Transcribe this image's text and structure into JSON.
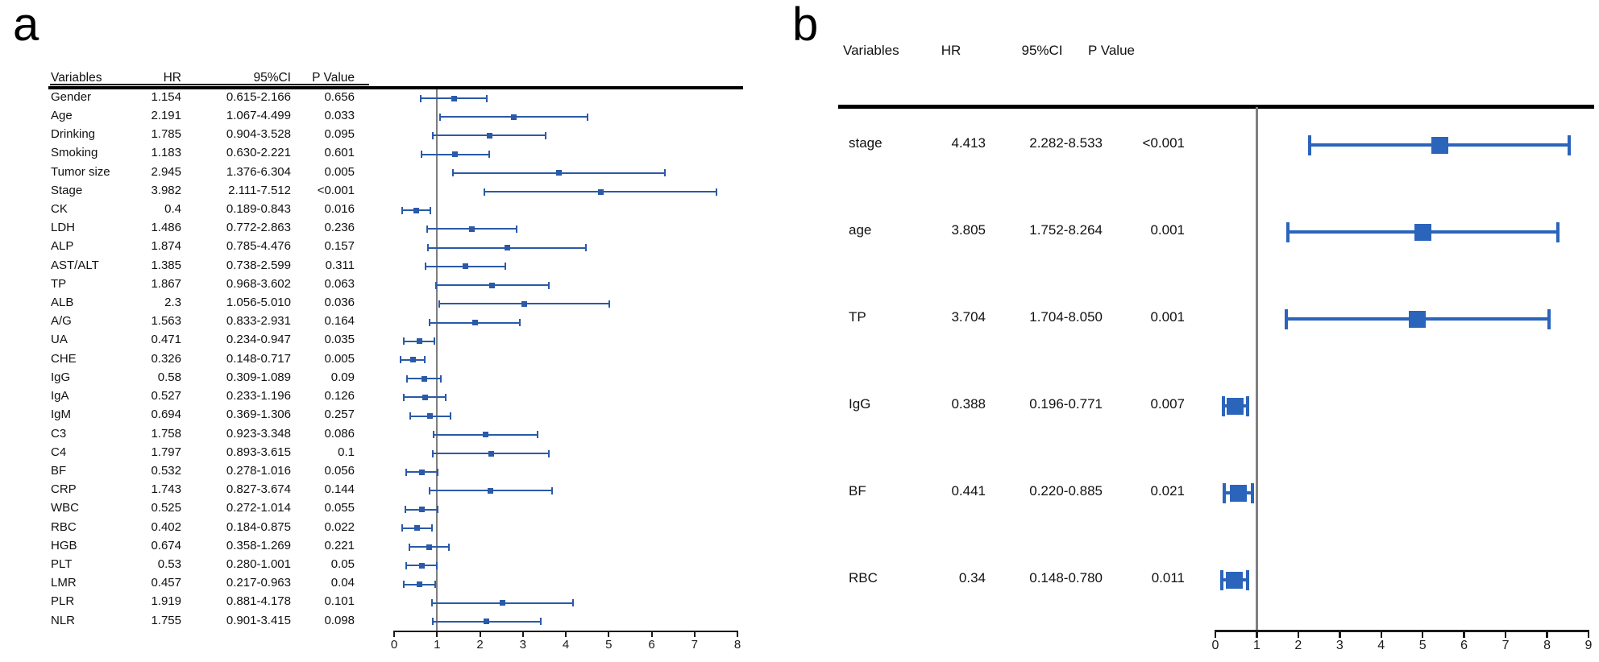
{
  "figure": {
    "panel_a_label": "a",
    "panel_b_label": "b",
    "background": "#ffffff",
    "text_color": "#111111",
    "reference_line_color": "#7f7f7f"
  },
  "chart_data": [
    {
      "type": "forest",
      "panel": "a",
      "accent_color": "#2a5aa8",
      "columns": [
        "Variables",
        "HR",
        "95%CI",
        "P Value"
      ],
      "x_axis": {
        "min": 0,
        "max": 8,
        "ticks": [
          0,
          1,
          2,
          3,
          4,
          5,
          6,
          7,
          8
        ]
      },
      "reference_line_x": 1,
      "marker_position": "ci_midpoint",
      "grid": false,
      "rows": [
        {
          "label": "Gender",
          "hr": "1.154",
          "ci": "0.615-2.166",
          "ci_low": 0.615,
          "ci_high": 2.166,
          "p": "0.656"
        },
        {
          "label": "Age",
          "hr": "2.191",
          "ci": "1.067-4.499",
          "ci_low": 1.067,
          "ci_high": 4.499,
          "p": "0.033"
        },
        {
          "label": "Drinking",
          "hr": "1.785",
          "ci": "0.904-3.528",
          "ci_low": 0.904,
          "ci_high": 3.528,
          "p": "0.095"
        },
        {
          "label": "Smoking",
          "hr": "1.183",
          "ci": "0.630-2.221",
          "ci_low": 0.63,
          "ci_high": 2.221,
          "p": "0.601"
        },
        {
          "label": "Tumor size",
          "hr": "2.945",
          "ci": "1.376-6.304",
          "ci_low": 1.376,
          "ci_high": 6.304,
          "p": "0.005"
        },
        {
          "label": "Stage",
          "hr": "3.982",
          "ci": "2.111-7.512",
          "ci_low": 2.111,
          "ci_high": 7.512,
          "p": "<0.001"
        },
        {
          "label": "CK",
          "hr": "0.4",
          "ci": "0.189-0.843",
          "ci_low": 0.189,
          "ci_high": 0.843,
          "p": "0.016"
        },
        {
          "label": "LDH",
          "hr": "1.486",
          "ci": "0.772-2.863",
          "ci_low": 0.772,
          "ci_high": 2.863,
          "p": "0.236"
        },
        {
          "label": "ALP",
          "hr": "1.874",
          "ci": "0.785-4.476",
          "ci_low": 0.785,
          "ci_high": 4.476,
          "p": "0.157"
        },
        {
          "label": "AST/ALT",
          "hr": "1.385",
          "ci": "0.738-2.599",
          "ci_low": 0.738,
          "ci_high": 2.599,
          "p": "0.311"
        },
        {
          "label": "TP",
          "hr": "1.867",
          "ci": "0.968-3.602",
          "ci_low": 0.968,
          "ci_high": 3.602,
          "p": "0.063"
        },
        {
          "label": "ALB",
          "hr": "2.3",
          "ci": "1.056-5.010",
          "ci_low": 1.056,
          "ci_high": 5.01,
          "p": "0.036"
        },
        {
          "label": "A/G",
          "hr": "1.563",
          "ci": "0.833-2.931",
          "ci_low": 0.833,
          "ci_high": 2.931,
          "p": "0.164"
        },
        {
          "label": "UA",
          "hr": "0.471",
          "ci": "0.234-0.947",
          "ci_low": 0.234,
          "ci_high": 0.947,
          "p": "0.035"
        },
        {
          "label": "CHE",
          "hr": "0.326",
          "ci": "0.148-0.717",
          "ci_low": 0.148,
          "ci_high": 0.717,
          "p": "0.005"
        },
        {
          "label": "IgG",
          "hr": "0.58",
          "ci": "0.309-1.089",
          "ci_low": 0.309,
          "ci_high": 1.089,
          "p": "0.09"
        },
        {
          "label": "IgA",
          "hr": "0.527",
          "ci": "0.233-1.196",
          "ci_low": 0.233,
          "ci_high": 1.196,
          "p": "0.126"
        },
        {
          "label": "IgM",
          "hr": "0.694",
          "ci": "0.369-1.306",
          "ci_low": 0.369,
          "ci_high": 1.306,
          "p": "0.257"
        },
        {
          "label": "C3",
          "hr": "1.758",
          "ci": "0.923-3.348",
          "ci_low": 0.923,
          "ci_high": 3.348,
          "p": "0.086"
        },
        {
          "label": "C4",
          "hr": "1.797",
          "ci": "0.893-3.615",
          "ci_low": 0.893,
          "ci_high": 3.615,
          "p": "0.1"
        },
        {
          "label": "BF",
          "hr": "0.532",
          "ci": "0.278-1.016",
          "ci_low": 0.278,
          "ci_high": 1.016,
          "p": "0.056"
        },
        {
          "label": "CRP",
          "hr": "1.743",
          "ci": "0.827-3.674",
          "ci_low": 0.827,
          "ci_high": 3.674,
          "p": "0.144"
        },
        {
          "label": "WBC",
          "hr": "0.525",
          "ci": "0.272-1.014",
          "ci_low": 0.272,
          "ci_high": 1.014,
          "p": "0.055"
        },
        {
          "label": "RBC",
          "hr": "0.402",
          "ci": "0.184-0.875",
          "ci_low": 0.184,
          "ci_high": 0.875,
          "p": "0.022"
        },
        {
          "label": "HGB",
          "hr": "0.674",
          "ci": "0.358-1.269",
          "ci_low": 0.358,
          "ci_high": 1.269,
          "p": "0.221"
        },
        {
          "label": "PLT",
          "hr": "0.53",
          "ci": "0.280-1.001",
          "ci_low": 0.28,
          "ci_high": 1.001,
          "p": "0.05"
        },
        {
          "label": "LMR",
          "hr": "0.457",
          "ci": "0.217-0.963",
          "ci_low": 0.217,
          "ci_high": 0.963,
          "p": "0.04"
        },
        {
          "label": "PLR",
          "hr": "1.919",
          "ci": "0.881-4.178",
          "ci_low": 0.881,
          "ci_high": 4.178,
          "p": "0.101"
        },
        {
          "label": "NLR",
          "hr": "1.755",
          "ci": "0.901-3.415",
          "ci_low": 0.901,
          "ci_high": 3.415,
          "p": "0.098"
        }
      ]
    },
    {
      "type": "forest",
      "panel": "b",
      "accent_color": "#2b64bb",
      "columns": [
        "Variables",
        "HR",
        "95%CI",
        "P Value"
      ],
      "x_axis": {
        "min": 0,
        "max": 9,
        "ticks": [
          0,
          1,
          2,
          3,
          4,
          5,
          6,
          7,
          8,
          9
        ]
      },
      "reference_line_x": 1,
      "marker_position": "ci_midpoint",
      "grid": false,
      "rows": [
        {
          "label": "stage",
          "hr": "4.413",
          "ci": "2.282-8.533",
          "ci_low": 2.282,
          "ci_high": 8.533,
          "p": "<0.001"
        },
        {
          "label": "age",
          "hr": "3.805",
          "ci": "1.752-8.264",
          "ci_low": 1.752,
          "ci_high": 8.264,
          "p": "0.001"
        },
        {
          "label": "TP",
          "hr": "3.704",
          "ci": "1.704-8.050",
          "ci_low": 1.704,
          "ci_high": 8.05,
          "p": "0.001"
        },
        {
          "label": "IgG",
          "hr": "0.388",
          "ci": "0.196-0.771",
          "ci_low": 0.196,
          "ci_high": 0.771,
          "p": "0.007"
        },
        {
          "label": "BF",
          "hr": "0.441",
          "ci": "0.220-0.885",
          "ci_low": 0.22,
          "ci_high": 0.885,
          "p": "0.021"
        },
        {
          "label": "RBC",
          "hr": "0.34",
          "ci": "0.148-0.780",
          "ci_low": 0.148,
          "ci_high": 0.78,
          "p": "0.011"
        }
      ]
    }
  ]
}
